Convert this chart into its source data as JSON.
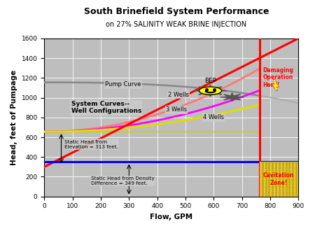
{
  "title": "South Brinefield System Performance",
  "subtitle": "on 27% SALINITY WEAK BRINE INJECTION",
  "xlabel": "Flow, GPM",
  "ylabel": "Head, feet of Pumpage",
  "xlim": [
    0,
    900
  ],
  "ylim": [
    0,
    1600
  ],
  "xticks": [
    0,
    100,
    200,
    300,
    400,
    500,
    600,
    700,
    800,
    900
  ],
  "yticks": [
    0,
    200,
    400,
    600,
    800,
    1000,
    1200,
    1400,
    1600
  ],
  "bg_color": "#bebebe",
  "grid_color": "#ffffff",
  "blue_line_y": 349,
  "yellow_line_y": 660,
  "cavitation_x": 762,
  "pump_curve_color": "#888888",
  "well2_color": "#ff7777",
  "well3_color": "#ff00ff",
  "well4_color": "#dddd00",
  "damaging_line_color": "#ff0000",
  "bep_x": 588,
  "bep_y": 1070,
  "star2_x": 665,
  "star2_y": 1005
}
